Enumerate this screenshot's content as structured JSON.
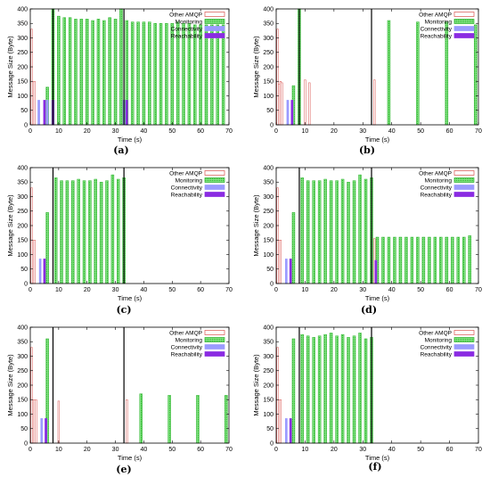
{
  "colors": {
    "other_amqp": "#e8a0a0",
    "other_amqp_stroke": "#d9534f",
    "monitoring": "#7ee07e",
    "monitoring_stroke": "#2fb52f",
    "connectivity": "#9b9bff",
    "reachability": "#8a2be2",
    "event_line": "#000000"
  },
  "chart_data": [
    {
      "type": "bar",
      "panel": "(a)",
      "xlabel": "Time (s)",
      "ylabel": "Message Size (Byte)",
      "xlim": [
        0,
        70
      ],
      "ylim": [
        0,
        400
      ],
      "xticks": [
        0,
        10,
        20,
        30,
        40,
        50,
        60,
        70
      ],
      "yticks": [
        0,
        50,
        100,
        150,
        200,
        250,
        300,
        350,
        400
      ],
      "grid": false,
      "legend_position": "top-right",
      "series": [
        {
          "name": "Other AMQP",
          "x": [
            0.5,
            1,
            1.5
          ],
          "values": [
            330,
            150,
            150
          ]
        },
        {
          "name": "Monitoring",
          "x": [
            6,
            8,
            10,
            12,
            14,
            16,
            18,
            20,
            22,
            24,
            26,
            28,
            30,
            32,
            34,
            36,
            38,
            40,
            42,
            44,
            46,
            48,
            50,
            52,
            54,
            56,
            58,
            60,
            62,
            64,
            66,
            68
          ],
          "values": [
            130,
            400,
            375,
            370,
            370,
            365,
            365,
            365,
            360,
            365,
            360,
            370,
            365,
            400,
            360,
            355,
            355,
            355,
            355,
            350,
            350,
            350,
            350,
            355,
            350,
            350,
            345,
            345,
            345,
            345,
            345,
            345
          ]
        },
        {
          "name": "Connectivity",
          "x": [
            3,
            6,
            33
          ],
          "values": [
            85,
            85,
            85
          ]
        },
        {
          "name": "Reachability",
          "x": [
            5,
            8,
            34
          ],
          "values": [
            85,
            85,
            85
          ]
        }
      ],
      "event_lines": [
        8,
        33
      ]
    },
    {
      "type": "bar",
      "panel": "(b)",
      "xlabel": "Time (s)",
      "ylabel": "Message Size (Byte)",
      "xlim": [
        0,
        70
      ],
      "ylim": [
        0,
        400
      ],
      "xticks": [
        0,
        10,
        20,
        30,
        40,
        50,
        60,
        70
      ],
      "yticks": [
        0,
        50,
        100,
        150,
        200,
        250,
        300,
        350,
        400
      ],
      "grid": false,
      "legend_position": "top-right",
      "series": [
        {
          "name": "Other AMQP",
          "x": [
            0.5,
            1,
            1.5,
            2,
            10,
            11.5,
            34
          ],
          "values": [
            330,
            140,
            150,
            145,
            155,
            145,
            155
          ]
        },
        {
          "name": "Monitoring",
          "x": [
            6,
            8,
            39,
            49,
            59,
            69
          ],
          "values": [
            135,
            400,
            360,
            355,
            355,
            345
          ]
        },
        {
          "name": "Connectivity",
          "x": [
            4
          ],
          "values": [
            85
          ]
        },
        {
          "name": "Reachability",
          "x": [
            5.5
          ],
          "values": [
            85
          ]
        }
      ],
      "event_lines": [
        8,
        33
      ]
    },
    {
      "type": "bar",
      "panel": "(c)",
      "xlabel": "Time (s)",
      "ylabel": "Message Size (Byte)",
      "xlim": [
        0,
        70
      ],
      "ylim": [
        0,
        400
      ],
      "xticks": [
        0,
        10,
        20,
        30,
        40,
        50,
        60,
        70
      ],
      "yticks": [
        0,
        50,
        100,
        150,
        200,
        250,
        300,
        350,
        400
      ],
      "grid": false,
      "legend_position": "top-right",
      "series": [
        {
          "name": "Other AMQP",
          "x": [
            0.5,
            1,
            1.5
          ],
          "values": [
            330,
            150,
            150
          ]
        },
        {
          "name": "Monitoring",
          "x": [
            6,
            9,
            11,
            13,
            15,
            17,
            19,
            21,
            23,
            25,
            27,
            29,
            31,
            33
          ],
          "values": [
            245,
            365,
            355,
            355,
            355,
            360,
            355,
            355,
            360,
            350,
            355,
            375,
            360,
            365
          ]
        },
        {
          "name": "Connectivity",
          "x": [
            3.5
          ],
          "values": [
            85
          ]
        },
        {
          "name": "Reachability",
          "x": [
            5
          ],
          "values": [
            85
          ]
        }
      ],
      "event_lines": [
        8,
        33
      ]
    },
    {
      "type": "bar",
      "panel": "(d)",
      "xlabel": "Time (s)",
      "ylabel": "Message Size (Byte)",
      "xlim": [
        0,
        70
      ],
      "ylim": [
        0,
        400
      ],
      "xticks": [
        0,
        10,
        20,
        30,
        40,
        50,
        60,
        70
      ],
      "yticks": [
        0,
        50,
        100,
        150,
        200,
        250,
        300,
        350,
        400
      ],
      "grid": false,
      "legend_position": "top-right",
      "series": [
        {
          "name": "Other AMQP",
          "x": [
            0.5,
            1,
            1.5,
            34
          ],
          "values": [
            330,
            150,
            150,
            155
          ]
        },
        {
          "name": "Monitoring",
          "x": [
            6,
            9,
            11,
            13,
            15,
            17,
            19,
            21,
            23,
            25,
            27,
            29,
            31,
            33,
            35,
            37,
            39,
            41,
            43,
            45,
            47,
            49,
            51,
            53,
            55,
            57,
            59,
            61,
            63,
            65,
            67
          ],
          "values": [
            245,
            365,
            355,
            355,
            355,
            360,
            355,
            355,
            360,
            350,
            355,
            375,
            360,
            365,
            160,
            160,
            160,
            160,
            160,
            160,
            160,
            160,
            160,
            160,
            160,
            160,
            160,
            160,
            160,
            160,
            165
          ]
        },
        {
          "name": "Connectivity",
          "x": [
            3.5
          ],
          "values": [
            85
          ]
        },
        {
          "name": "Reachability",
          "x": [
            5,
            34.5
          ],
          "values": [
            85,
            80
          ]
        }
      ],
      "event_lines": [
        8,
        33
      ]
    },
    {
      "type": "bar",
      "panel": "(e)",
      "xlabel": "Time (s)",
      "ylabel": "Message Size (Byte)",
      "xlim": [
        0,
        70
      ],
      "ylim": [
        0,
        400
      ],
      "xticks": [
        0,
        10,
        20,
        30,
        40,
        50,
        60,
        70
      ],
      "yticks": [
        0,
        50,
        100,
        150,
        200,
        250,
        300,
        350,
        400
      ],
      "grid": false,
      "legend_position": "top-right",
      "series": [
        {
          "name": "Other AMQP",
          "x": [
            0.5,
            1,
            1.5,
            2,
            10,
            34
          ],
          "values": [
            330,
            150,
            150,
            150,
            145,
            150
          ]
        },
        {
          "name": "Monitoring",
          "x": [
            6,
            39,
            49,
            59,
            69
          ],
          "values": [
            360,
            170,
            165,
            165,
            165
          ]
        },
        {
          "name": "Connectivity",
          "x": [
            4
          ],
          "values": [
            85
          ]
        },
        {
          "name": "Reachability",
          "x": [
            5.5
          ],
          "values": [
            85
          ]
        }
      ],
      "event_lines": [
        8,
        33
      ]
    },
    {
      "type": "bar",
      "panel": "(f)",
      "xlabel": "Time (s)",
      "ylabel": "Message Size (Byte)",
      "xlim": [
        0,
        70
      ],
      "ylim": [
        0,
        400
      ],
      "xticks": [
        0,
        10,
        20,
        30,
        40,
        50,
        60,
        70
      ],
      "yticks": [
        0,
        50,
        100,
        150,
        200,
        250,
        300,
        350,
        400
      ],
      "grid": false,
      "legend_position": "top-right",
      "series": [
        {
          "name": "Other AMQP",
          "x": [
            0.5,
            1,
            1.5
          ],
          "values": [
            330,
            150,
            150
          ]
        },
        {
          "name": "Monitoring",
          "x": [
            6,
            9,
            11,
            13,
            15,
            17,
            19,
            21,
            23,
            25,
            27,
            29,
            31,
            33
          ],
          "values": [
            360,
            375,
            370,
            365,
            370,
            375,
            380,
            370,
            375,
            365,
            370,
            380,
            360,
            365
          ]
        },
        {
          "name": "Connectivity",
          "x": [
            3.5
          ],
          "values": [
            85
          ]
        },
        {
          "name": "Reachability",
          "x": [
            5
          ],
          "values": [
            85
          ]
        }
      ],
      "event_lines": [
        8,
        33
      ]
    }
  ]
}
